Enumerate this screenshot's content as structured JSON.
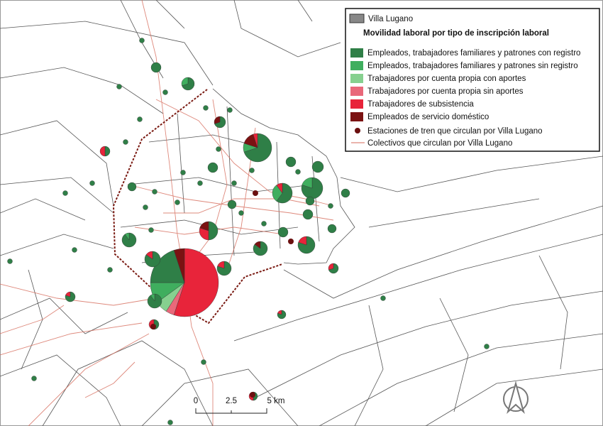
{
  "legend": {
    "area_label": "Villa Lugano",
    "title": "Movilidad laboral por tipo de inscripción laboral",
    "items": [
      {
        "label": "Empleados, trabajadores familiares y patrones con registro",
        "color": "#2f7f47"
      },
      {
        "label": "Empleados, trabajadores familiares y patrones sin registro",
        "color": "#3fae5e"
      },
      {
        "label": "Trabajadores por cuenta propia con aportes",
        "color": "#86d08f"
      },
      {
        "label": "Trabajadores por cuenta propia sin aportes",
        "color": "#e9687a"
      },
      {
        "label": "Trabajadores de subsistencia",
        "color": "#e8243a"
      },
      {
        "label": "Empleados de servicio doméstico",
        "color": "#7b1212"
      }
    ],
    "station_label": "Estaciones de tren que circulan por Villa Lugano",
    "bus_label": "Colectivos que circulan por Villa Lugano"
  },
  "scale": {
    "labels": [
      "0",
      "2.5",
      "5 km"
    ]
  }
}
